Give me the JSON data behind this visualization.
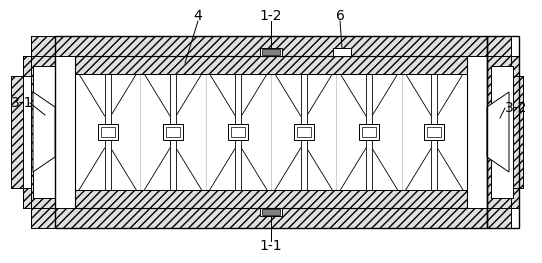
{
  "bg_color": "#ffffff",
  "lc": "#000000",
  "hatch": "////",
  "fig_w": 5.42,
  "fig_h": 2.63,
  "dpi": 100,
  "label_fs": 10
}
